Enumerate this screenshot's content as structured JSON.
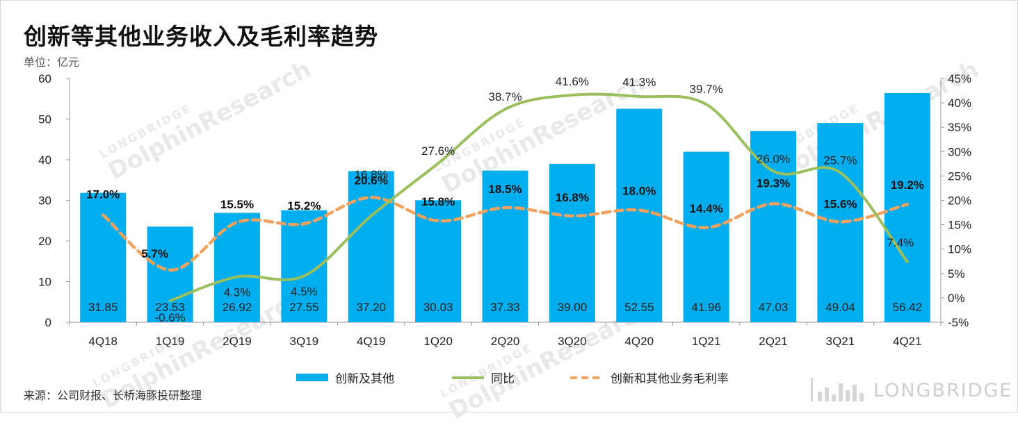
{
  "title": "创新等其他业务收入及毛利率趋势",
  "unit_label": "单位：亿元",
  "source": "来源：公司财报、长桥海豚投研整理",
  "brand": "LONGBRIDGE",
  "watermark": {
    "small": "LONGBRIDGE",
    "big": "DolphinResearch"
  },
  "colors": {
    "bar": "#00adef",
    "yoy_line": "#9cbf5e",
    "margin_line": "#f0a25e"
  },
  "chart_data": {
    "type": "bar",
    "categories": [
      "4Q18",
      "1Q19",
      "2Q19",
      "3Q19",
      "4Q19",
      "1Q20",
      "2Q20",
      "3Q20",
      "4Q20",
      "1Q21",
      "2Q21",
      "3Q21",
      "4Q21"
    ],
    "series": [
      {
        "name": "创新及其他",
        "type": "bar",
        "axis": "left",
        "values": [
          31.85,
          23.53,
          26.92,
          27.55,
          37.2,
          30.03,
          37.33,
          39.0,
          52.55,
          41.96,
          47.03,
          49.04,
          56.42
        ],
        "labels": [
          "31.85",
          "23.53",
          "26.92",
          "27.55",
          "37.20",
          "30.03",
          "37.33",
          "39.00",
          "52.55",
          "41.96",
          "47.03",
          "49.04",
          "56.42"
        ]
      },
      {
        "name": "同比",
        "type": "line",
        "axis": "right",
        "values": [
          null,
          -0.6,
          4.3,
          4.5,
          16.8,
          27.6,
          38.7,
          41.6,
          41.3,
          39.7,
          26.0,
          25.7,
          7.4
        ],
        "labels": [
          "",
          "-0.6%",
          "4.3%",
          "4.5%",
          "16.8%",
          "27.6%",
          "38.7%",
          "41.6%",
          "41.3%",
          "39.7%",
          "26.0%",
          "25.7%",
          "7.4%"
        ]
      },
      {
        "name": "创新和其他业务毛利率",
        "type": "line-dashed",
        "axis": "right",
        "values": [
          17.0,
          5.7,
          15.5,
          15.2,
          20.6,
          15.8,
          18.5,
          16.8,
          18.0,
          14.4,
          19.3,
          15.6,
          19.2
        ],
        "labels": [
          "17.0%",
          "5.7%",
          "15.5%",
          "15.2%",
          "20.6%",
          "15.8%",
          "18.5%",
          "16.8%",
          "18.0%",
          "14.4%",
          "19.3%",
          "15.6%",
          "19.2%"
        ]
      }
    ],
    "y_left": {
      "min": 0,
      "max": 60,
      "ticks": [
        "0",
        "10",
        "20",
        "30",
        "40",
        "50",
        "60"
      ]
    },
    "y_right": {
      "min": -5,
      "max": 45,
      "ticks": [
        "-5%",
        "0%",
        "5%",
        "10%",
        "15%",
        "20%",
        "25%",
        "30%",
        "35%",
        "40%",
        "45%"
      ]
    },
    "legend": [
      "创新及其他",
      "同比",
      "创新和其他业务毛利率"
    ],
    "legend_position": "bottom",
    "grid": false
  }
}
